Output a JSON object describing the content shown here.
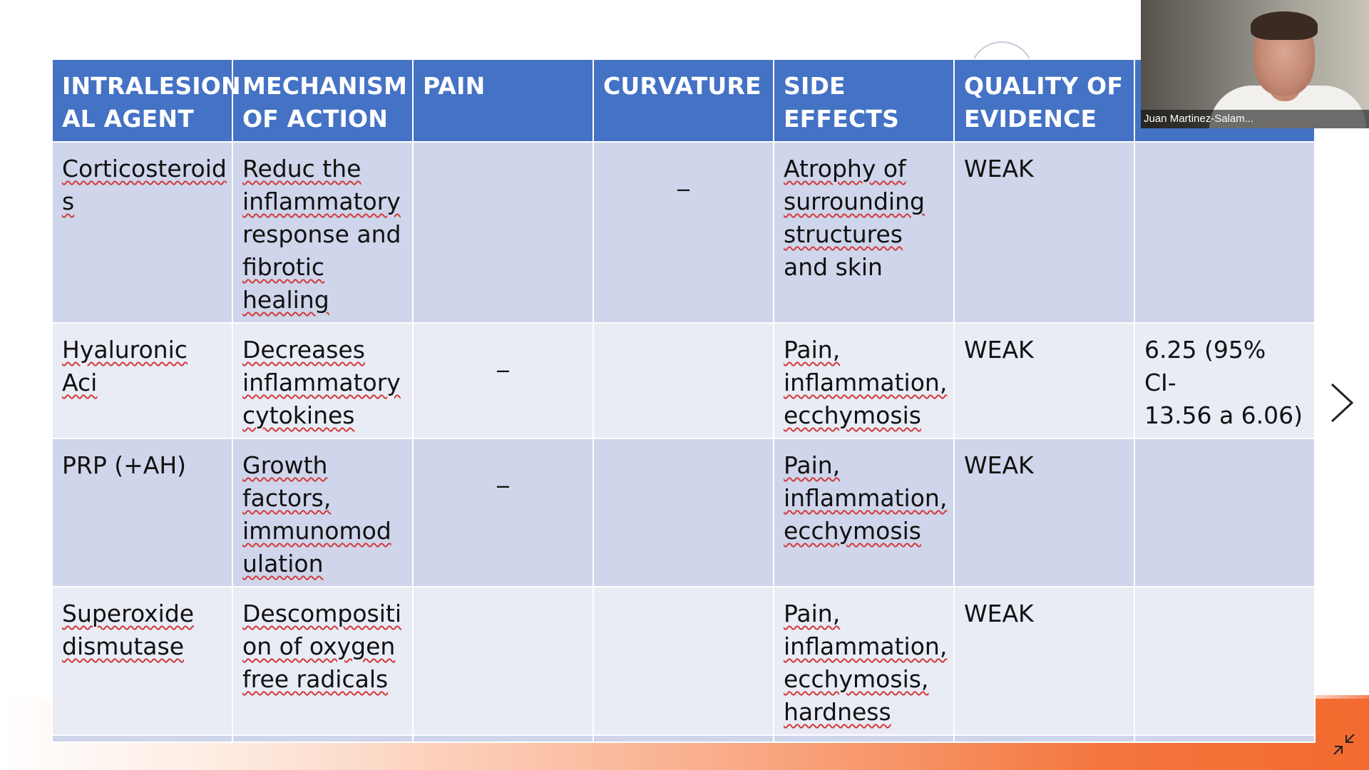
{
  "table": {
    "headers": [
      "INTRALESION AL AGENT",
      "MECHANISM OF ACTION",
      "PAIN",
      "CURVATURE",
      "SIDE EFFECTS",
      "QUALITY OF EVIDENCE",
      ""
    ],
    "rows": [
      {
        "agent": [
          "Corticosteroid",
          "s"
        ],
        "mechanism": [
          "Reduc the",
          "inflammatory",
          "response and",
          "fibrotic",
          "healing"
        ],
        "pain": "",
        "curvature": "_",
        "side_effects": [
          "Atrophy of",
          "surrounding",
          "structures",
          "and skin"
        ],
        "evidence": "WEAK",
        "extra": []
      },
      {
        "agent": [
          "Hyaluronic",
          "Aci"
        ],
        "mechanism": [
          "Decreases",
          "inflammatory",
          "cytokines"
        ],
        "pain": "_",
        "curvature": "",
        "side_effects": [
          "Pain,",
          "inflammation,",
          "ecchymosis"
        ],
        "evidence": "WEAK",
        "extra": [
          "6.25 (95% CI-",
          "13.56 a 6.06)"
        ]
      },
      {
        "agent": [
          "PRP (+AH)"
        ],
        "mechanism": [
          "Growth",
          "factors,",
          "immunomod",
          "ulation"
        ],
        "pain": "_",
        "curvature": "",
        "side_effects": [
          "Pain,",
          "inflammation,",
          "ecchymosis"
        ],
        "evidence": "WEAK",
        "extra": []
      },
      {
        "agent": [
          "Superoxide",
          "dismutase"
        ],
        "mechanism": [
          "Descompositi",
          "on of oxygen",
          "free radicals"
        ],
        "pain": "",
        "curvature": "",
        "side_effects": [
          "Pain,",
          "inflammation,",
          "ecchymosis,",
          "hardness"
        ],
        "evidence": "WEAK",
        "extra": []
      }
    ]
  },
  "video": {
    "participant_name": "Juan Martinez-Salam..."
  },
  "icons": {
    "next": "chevron-right-icon",
    "collapse": "collapse-icon"
  },
  "colors": {
    "header": "#4472c4",
    "row_dark": "#cfd5ea",
    "row_light": "#e9ebf5",
    "footer_orange": "#f26a2e"
  }
}
